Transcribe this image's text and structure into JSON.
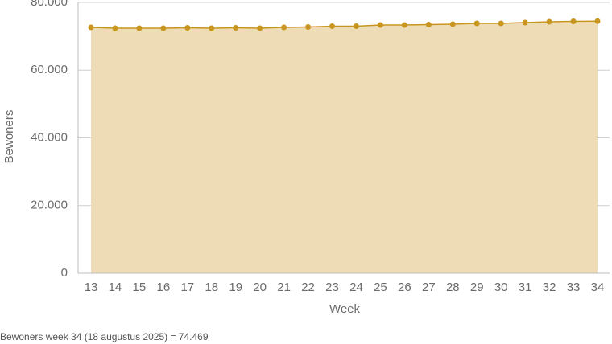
{
  "chart_data": {
    "type": "area",
    "x_label": "Week",
    "y_label": "Bewoners",
    "note": "Bewoners week 34 (18 augustus 2025) = 74.469",
    "categories": [
      "13",
      "14",
      "15",
      "16",
      "17",
      "18",
      "19",
      "20",
      "21",
      "22",
      "23",
      "24",
      "25",
      "26",
      "27",
      "28",
      "29",
      "30",
      "31",
      "32",
      "33",
      "34"
    ],
    "series": [
      {
        "name": "Bewoners",
        "color": "#c8961e",
        "fill": "#eddcb5",
        "values": [
          72640,
          72400,
          72400,
          72400,
          72520,
          72400,
          72520,
          72400,
          72640,
          72760,
          73000,
          73000,
          73350,
          73350,
          73470,
          73590,
          73830,
          73830,
          74070,
          74300,
          74420,
          74469
        ]
      }
    ],
    "ylim": [
      0,
      80000
    ],
    "yticks": [
      0,
      {
        "value": 20000,
        "label": "20.000"
      },
      {
        "value": 40000,
        "label": "40.000"
      },
      {
        "value": 60000,
        "label": "60.000"
      },
      {
        "value": 80000,
        "label": "80.000"
      }
    ],
    "grid": true
  }
}
